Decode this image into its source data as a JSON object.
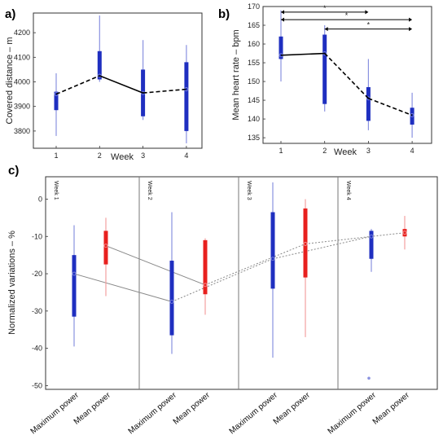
{
  "panels": [
    {
      "letter": "a)",
      "ylabel": "Covered distance – m",
      "xlabel": "Week",
      "xticks": [
        "1",
        "2",
        "3",
        "4"
      ],
      "yticks": [
        "3800",
        "3900",
        "4000",
        "4100",
        "4200"
      ]
    },
    {
      "letter": "b)",
      "ylabel": "Mean heart rate – bpm",
      "xlabel": "Week",
      "xticks": [
        "1",
        "2",
        "3",
        "4"
      ],
      "yticks": [
        "135",
        "140",
        "145",
        "150",
        "155",
        "160",
        "165",
        "170"
      ],
      "sig_marks": [
        "*",
        "*",
        "*"
      ]
    },
    {
      "letter": "c)",
      "ylabel": "Normalized variations  –  %",
      "yticks": [
        "0",
        "-10",
        "-20",
        "-30",
        "-40",
        "-50"
      ],
      "week_labels": [
        "Week 1",
        "Week 2",
        "Week 3",
        "Week 4"
      ],
      "category_labels": [
        "Maximum power",
        "Mean power",
        "Maximum power",
        "Mean power",
        "Maximum power",
        "Mean power",
        "Maximum power",
        "Mean power"
      ]
    }
  ],
  "colors": {
    "max_power": "#1f2fc0",
    "mean_power": "#e8201e",
    "whisker_blue": "#8a92e0",
    "whisker_red": "#f2a0a0",
    "connector": "#888888"
  },
  "chart_data": [
    {
      "type": "box",
      "title": "a)",
      "xlabel": "Week",
      "ylabel": "Covered distance – m",
      "x": [
        1,
        2,
        3,
        4
      ],
      "ylim": [
        3730,
        4280
      ],
      "boxes": [
        {
          "x": 1,
          "whisker_low": 3780,
          "q1": 3885,
          "median": 3950,
          "q3": 3960,
          "whisker_high": 4035
        },
        {
          "x": 2,
          "whisker_low": 4000,
          "q1": 4010,
          "median": 4025,
          "q3": 4125,
          "whisker_high": 4270
        },
        {
          "x": 3,
          "whisker_low": 3845,
          "q1": 3860,
          "median": 3955,
          "q3": 4050,
          "whisker_high": 4170
        },
        {
          "x": 4,
          "whisker_low": 3750,
          "q1": 3800,
          "median": 3970,
          "q3": 4080,
          "whisker_high": 4150
        }
      ],
      "mean_line": [
        3950,
        4025,
        3955,
        3970
      ],
      "line_styles": [
        "dashed",
        "solid",
        "dashed"
      ]
    },
    {
      "type": "box",
      "title": "b)",
      "xlabel": "Week",
      "ylabel": "Mean heart rate – bpm",
      "x": [
        1,
        2,
        3,
        4
      ],
      "ylim": [
        133.5,
        170
      ],
      "boxes": [
        {
          "x": 1,
          "whisker_low": 150,
          "q1": 156,
          "median": 157,
          "q3": 162,
          "whisker_high": 169
        },
        {
          "x": 2,
          "whisker_low": 142,
          "q1": 144,
          "median": 157.5,
          "q3": 162.5,
          "whisker_high": 165
        },
        {
          "x": 3,
          "whisker_low": 137,
          "q1": 139.5,
          "median": 145.5,
          "q3": 148.5,
          "whisker_high": 156
        },
        {
          "x": 4,
          "whisker_low": 135,
          "q1": 138.5,
          "median": 141,
          "q3": 143,
          "whisker_high": 147
        }
      ],
      "mean_line": [
        157,
        157.5,
        145.5,
        141
      ],
      "line_styles": [
        "solid",
        "dashed",
        "dashed"
      ],
      "significance": [
        {
          "from": 1,
          "to": 3,
          "y": 168.5,
          "label": "*"
        },
        {
          "from": 1,
          "to": 4,
          "y": 166.5,
          "label": "*"
        },
        {
          "from": 2,
          "to": 4,
          "y": 164,
          "label": "*"
        }
      ]
    },
    {
      "type": "box",
      "title": "c)",
      "ylabel": "Normalized variations  –  %",
      "categories": [
        "Maximum power",
        "Mean power",
        "Maximum power",
        "Mean power",
        "Maximum power",
        "Mean power",
        "Maximum power",
        "Mean power"
      ],
      "groups": [
        "Week 1",
        "Week 2",
        "Week 3",
        "Week 4"
      ],
      "ylim": [
        -51,
        6
      ],
      "series": [
        {
          "name": "Maximum power",
          "boxes": [
            {
              "group": "Week 1",
              "whisker_low": -39.5,
              "q1": -31.5,
              "median": -20,
              "q3": -15,
              "whisker_high": -7
            },
            {
              "group": "Week 2",
              "whisker_low": -41.5,
              "q1": -36.5,
              "median": -27.5,
              "q3": -16.5,
              "whisker_high": -3.5
            },
            {
              "group": "Week 3",
              "whisker_low": -42.5,
              "q1": -24,
              "median": -16,
              "q3": -3.5,
              "whisker_high": 4.5
            },
            {
              "group": "Week 4",
              "whisker_low": -19.5,
              "q1": -16,
              "median": -10,
              "q3": -8.5,
              "whisker_high": -8
            }
          ],
          "outliers": [
            {
              "group": "Week 4",
              "value": -48
            }
          ]
        },
        {
          "name": "Mean power",
          "boxes": [
            {
              "group": "Week 1",
              "whisker_low": -26,
              "q1": -17.5,
              "median": -12.5,
              "q3": -8.5,
              "whisker_high": -5
            },
            {
              "group": "Week 2",
              "whisker_low": -31,
              "q1": -25.5,
              "median": -23,
              "q3": -11,
              "whisker_high": -10.5
            },
            {
              "group": "Week 3",
              "whisker_low": -37,
              "q1": -21,
              "median": -12,
              "q3": -2.5,
              "whisker_high": 0
            },
            {
              "group": "Week 4",
              "whisker_low": -13.5,
              "q1": -10,
              "median": -9,
              "q3": -8,
              "whisker_high": -4.5
            }
          ]
        }
      ]
    }
  ]
}
